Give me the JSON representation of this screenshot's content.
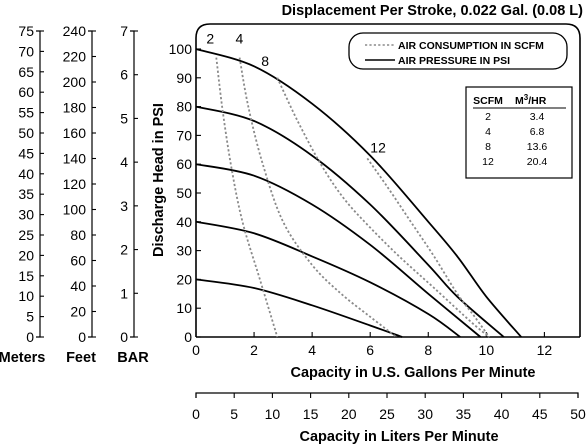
{
  "chart_data": {
    "type": "line",
    "title": "Displacement Per Stroke, 0.022 Gal. (0.08 L)",
    "xlabel": "Capacity in U.S. Gallons Per Minute",
    "ylabel": "Discharge Head in PSI",
    "xlim": [
      0,
      12
    ],
    "ylim": [
      0,
      100
    ],
    "x_ticks": [
      "0",
      "2",
      "4",
      "6",
      "8",
      "10",
      "12"
    ],
    "y_ticks": [
      "0",
      "10",
      "20",
      "30",
      "40",
      "50",
      "60",
      "70",
      "80",
      "90",
      "100"
    ],
    "grid": false,
    "secondary_x_axis": {
      "label": "Capacity in Liters Per Minute",
      "min": 0,
      "max": 50,
      "ticks": [
        "0",
        "5",
        "10",
        "15",
        "20",
        "25",
        "30",
        "35",
        "40",
        "45",
        "50"
      ]
    },
    "left_scales": [
      {
        "label": "Meters",
        "min": 0,
        "max": 75,
        "ticks": [
          "0",
          "5",
          "10",
          "15",
          "20",
          "25",
          "30",
          "35",
          "40",
          "45",
          "50",
          "55",
          "60",
          "65",
          "70",
          "75"
        ]
      },
      {
        "label": "Feet",
        "min": 0,
        "max": 240,
        "ticks": [
          "0",
          "20",
          "40",
          "60",
          "80",
          "100",
          "120",
          "140",
          "160",
          "180",
          "200",
          "220",
          "240"
        ]
      },
      {
        "label": "BAR",
        "min": 0,
        "max": 7,
        "ticks": [
          "0",
          "1",
          "2",
          "3",
          "4",
          "5",
          "6",
          "7"
        ]
      }
    ],
    "legend": {
      "position": "top-right",
      "entries": [
        {
          "label": "AIR CONSUMPTION IN SCFM",
          "style": "dotted"
        },
        {
          "label": "AIR PRESSURE IN PSI",
          "style": "solid"
        }
      ]
    },
    "air_table": {
      "headers": [
        "SCFM",
        "M",
        "3",
        "/HR"
      ],
      "rows": [
        [
          "2",
          "3.4"
        ],
        [
          "4",
          "6.8"
        ],
        [
          "8",
          "13.6"
        ],
        [
          "12",
          "20.4"
        ]
      ]
    },
    "pressure_series": [
      {
        "style": "solid",
        "x": [
          0,
          2,
          4,
          6,
          8,
          9,
          10,
          11.2
        ],
        "y": [
          100,
          94,
          81,
          63,
          40,
          28,
          14,
          0
        ]
      },
      {
        "style": "solid",
        "x": [
          0,
          2,
          4,
          6,
          8,
          9,
          10.6
        ],
        "y": [
          80,
          75,
          63,
          46,
          25,
          14,
          0
        ]
      },
      {
        "style": "solid",
        "x": [
          0,
          2,
          4,
          6,
          8,
          9.8
        ],
        "y": [
          60,
          56,
          46,
          32,
          15,
          0
        ]
      },
      {
        "style": "solid",
        "x": [
          0,
          2,
          4,
          6,
          8,
          9.1
        ],
        "y": [
          40,
          36,
          28,
          19,
          8,
          0
        ]
      },
      {
        "style": "solid",
        "x": [
          0,
          2,
          4,
          6,
          7.1
        ],
        "y": [
          20,
          17,
          11,
          4,
          0
        ]
      }
    ],
    "air_series": [
      {
        "label": "2",
        "style": "dotted",
        "x": [
          0.7,
          0.9,
          1.2,
          1.6,
          2.2,
          2.8
        ],
        "y": [
          97,
          80,
          60,
          40,
          20,
          0
        ]
      },
      {
        "label": "4",
        "style": "dotted",
        "x": [
          1.5,
          1.8,
          2.3,
          3.0,
          4.0,
          5.0,
          6.0,
          6.9
        ],
        "y": [
          97,
          80,
          60,
          40,
          25,
          15,
          7,
          0
        ]
      },
      {
        "label": "8",
        "style": "dotted",
        "x": [
          2.8,
          3.5,
          4.3,
          5.1,
          6.0,
          7.0,
          8.2,
          9.5,
          10.1
        ],
        "y": [
          90,
          75,
          60,
          48,
          38,
          28,
          17,
          5,
          0
        ]
      },
      {
        "label": "12",
        "style": "dotted",
        "x": [
          5.9,
          6.6,
          7.4,
          8.2,
          9.0,
          9.6,
          10.1
        ],
        "y": [
          62,
          52,
          40,
          28,
          15,
          7,
          0
        ]
      }
    ]
  }
}
